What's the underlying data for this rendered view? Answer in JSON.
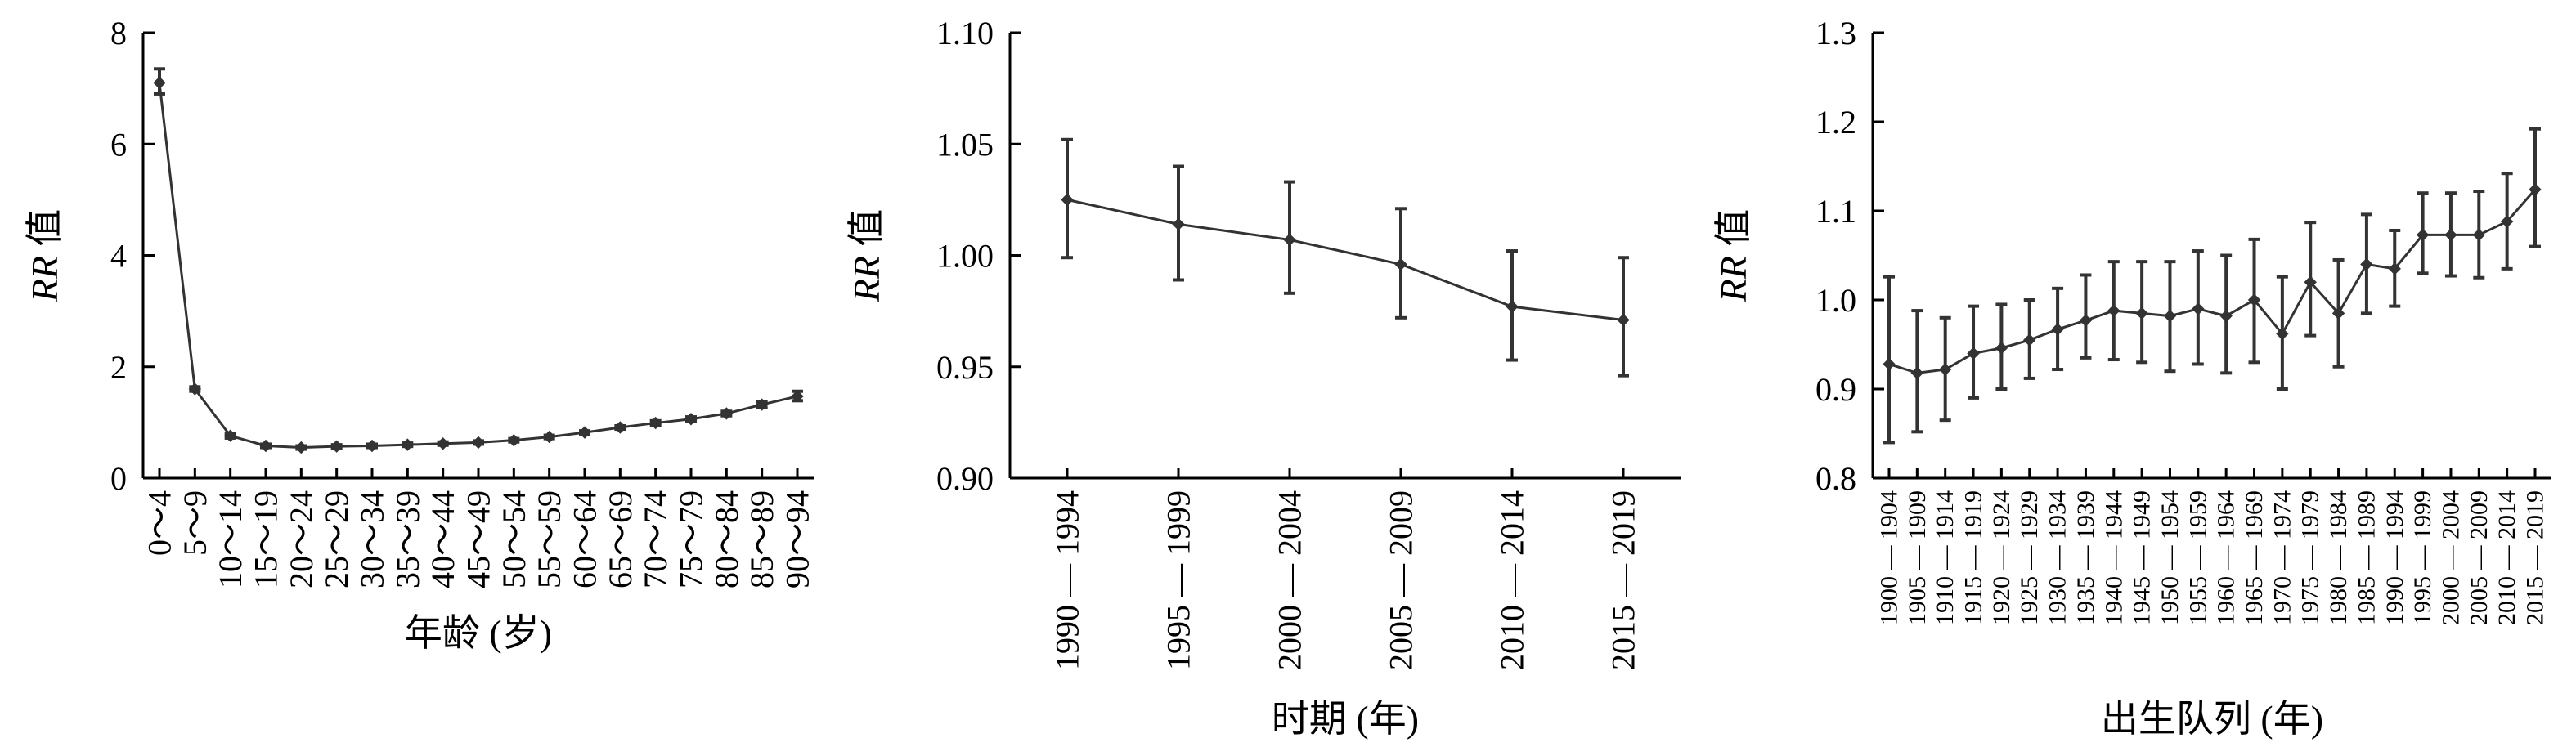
{
  "chart_data": [
    {
      "type": "line",
      "ylabel_italic": "RR",
      "ylabel_rest": " 值",
      "xlabel": "年龄 (岁)",
      "ylim": [
        0,
        8
      ],
      "yticks": [
        "0",
        "2",
        "4",
        "6",
        "8"
      ],
      "categories": [
        "0～4",
        "5～9",
        "10～14",
        "15～19",
        "20～24",
        "25～29",
        "30～34",
        "35～39",
        "40～44",
        "45～49",
        "50～54",
        "55～59",
        "60～64",
        "65～69",
        "70～74",
        "75～79",
        "80～84",
        "85～89",
        "90～94"
      ],
      "values": [
        7.1,
        1.6,
        0.76,
        0.58,
        0.55,
        0.57,
        0.58,
        0.6,
        0.62,
        0.64,
        0.68,
        0.74,
        0.82,
        0.91,
        0.99,
        1.06,
        1.16,
        1.32,
        1.47
      ],
      "err_low": [
        6.9,
        1.56,
        0.72,
        0.55,
        0.52,
        0.54,
        0.55,
        0.57,
        0.59,
        0.61,
        0.65,
        0.71,
        0.79,
        0.88,
        0.95,
        1.02,
        1.12,
        1.27,
        1.39
      ],
      "err_high": [
        7.35,
        1.64,
        0.8,
        0.61,
        0.58,
        0.6,
        0.61,
        0.63,
        0.65,
        0.67,
        0.71,
        0.77,
        0.85,
        0.94,
        1.03,
        1.1,
        1.2,
        1.37,
        1.56
      ]
    },
    {
      "type": "line",
      "ylabel_italic": "RR",
      "ylabel_rest": " 值",
      "xlabel": "时期 (年)",
      "ylim": [
        0.9,
        1.1
      ],
      "yticks": [
        "0.90",
        "0.95",
        "1.00",
        "1.05",
        "1.10"
      ],
      "categories": [
        "1990 — 1994",
        "1995 — 1999",
        "2000 — 2004",
        "2005 — 2009",
        "2010 — 2014",
        "2015 — 2019"
      ],
      "values": [
        1.025,
        1.014,
        1.007,
        0.996,
        0.977,
        0.971
      ],
      "err_low": [
        0.999,
        0.989,
        0.983,
        0.972,
        0.953,
        0.946
      ],
      "err_high": [
        1.052,
        1.04,
        1.033,
        1.021,
        1.002,
        0.999
      ]
    },
    {
      "type": "line",
      "ylabel_italic": "RR",
      "ylabel_rest": " 值",
      "xlabel": "出生队列 (年)",
      "ylim": [
        0.8,
        1.3
      ],
      "yticks": [
        "0.8",
        "0.9",
        "1.0",
        "1.1",
        "1.2",
        "1.3"
      ],
      "categories": [
        "1900 — 1904",
        "1905 — 1909",
        "1910 — 1914",
        "1915 — 1919",
        "1920 — 1924",
        "1925 — 1929",
        "1930 — 1934",
        "1935 — 1939",
        "1940 — 1944",
        "1945 — 1949",
        "1950 — 1954",
        "1955 — 1959",
        "1960 — 1964",
        "1965 — 1969",
        "1970 — 1974",
        "1975 — 1979",
        "1980 — 1984",
        "1985 — 1989",
        "1990 — 1994",
        "1995 — 1999",
        "2000 — 2004",
        "2005 — 2009",
        "2010 — 2014",
        "2015 — 2019"
      ],
      "values": [
        0.928,
        0.918,
        0.922,
        0.94,
        0.946,
        0.955,
        0.967,
        0.977,
        0.988,
        0.985,
        0.982,
        0.99,
        0.982,
        1.0,
        0.962,
        1.02,
        0.985,
        1.04,
        1.035,
        1.073,
        1.073,
        1.073,
        1.088,
        1.124
      ],
      "err_low": [
        0.84,
        0.852,
        0.865,
        0.89,
        0.9,
        0.912,
        0.922,
        0.935,
        0.933,
        0.93,
        0.92,
        0.928,
        0.918,
        0.93,
        0.9,
        0.96,
        0.925,
        0.985,
        0.993,
        1.03,
        1.027,
        1.025,
        1.035,
        1.06
      ],
      "err_high": [
        1.026,
        0.988,
        0.98,
        0.993,
        0.995,
        1.0,
        1.013,
        1.028,
        1.043,
        1.043,
        1.043,
        1.055,
        1.05,
        1.068,
        1.026,
        1.087,
        1.045,
        1.096,
        1.078,
        1.12,
        1.12,
        1.122,
        1.142,
        1.192
      ]
    }
  ]
}
